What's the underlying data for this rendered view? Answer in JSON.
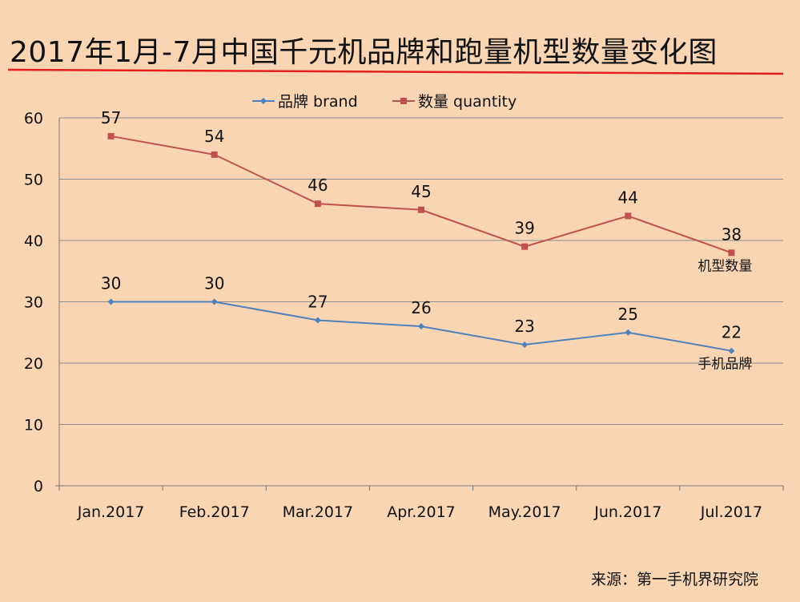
{
  "page": {
    "title": "2017年1月-7月中国千元机品牌和跑量机型数量变化图",
    "source": "来源：第一手机界研究院"
  },
  "colors": {
    "background": "#F9D5B4",
    "title_rule": "#E41E1E",
    "brand_series": "#4F81BD",
    "quantity_series": "#C0504D",
    "gridline": "#8C8C8C"
  },
  "chart_data": {
    "type": "line",
    "categories": [
      "Jan.2017",
      "Feb.2017",
      "Mar.2017",
      "Apr.2017",
      "May.2017",
      "Jun.2017",
      "Jul.2017"
    ],
    "series": [
      {
        "name": "品牌 brand",
        "marker": "diamond",
        "color": "#4F81BD",
        "values": [
          30,
          30,
          27,
          26,
          23,
          25,
          22
        ],
        "end_label": "手机品牌"
      },
      {
        "name": "数量 quantity",
        "marker": "square",
        "color": "#C0504D",
        "values": [
          57,
          54,
          46,
          45,
          39,
          44,
          38
        ],
        "end_label": "机型数量"
      }
    ],
    "ylim": [
      0,
      60
    ],
    "yticks": [
      0,
      10,
      20,
      30,
      40,
      50,
      60
    ],
    "grid": true,
    "legend": "top-center",
    "data_labels": true
  }
}
